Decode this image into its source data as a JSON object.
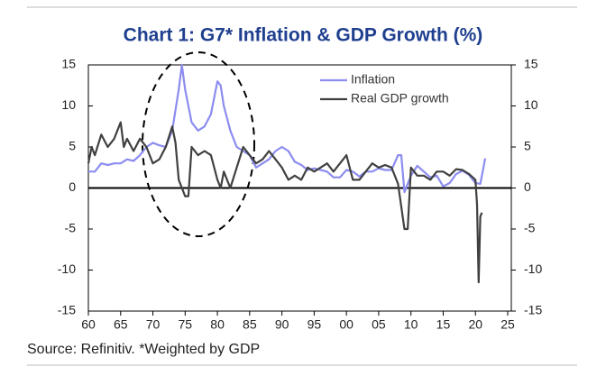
{
  "chart_data": {
    "type": "line",
    "title": "Chart 1: G7* Inflation & GDP Growth (%)",
    "source": "Source: Refinitiv. *Weighted by GDP",
    "xlim": [
      1960,
      2025
    ],
    "xticks": [
      {
        "value": 1960,
        "label": "60"
      },
      {
        "value": 1965,
        "label": "65"
      },
      {
        "value": 1970,
        "label": "70"
      },
      {
        "value": 1975,
        "label": "75"
      },
      {
        "value": 1980,
        "label": "80"
      },
      {
        "value": 1985,
        "label": "85"
      },
      {
        "value": 1990,
        "label": "90"
      },
      {
        "value": 1995,
        "label": "95"
      },
      {
        "value": 2000,
        "label": "00"
      },
      {
        "value": 2005,
        "label": "05"
      },
      {
        "value": 2010,
        "label": "10"
      },
      {
        "value": 2015,
        "label": "15"
      },
      {
        "value": 2020,
        "label": "20"
      },
      {
        "value": 2025,
        "label": "25"
      }
    ],
    "ylim": [
      -15,
      15
    ],
    "yticks": [
      15,
      10,
      5,
      0,
      -5,
      -10,
      -15
    ],
    "series": [
      {
        "name": "Inflation",
        "color": "#8c8cf0",
        "x": [
          1960,
          1961,
          1962,
          1963,
          1964,
          1965,
          1966,
          1967,
          1968,
          1969,
          1970,
          1971,
          1972,
          1973,
          1974,
          1974.5,
          1975,
          1976,
          1977,
          1978,
          1979,
          1980,
          1980.5,
          1981,
          1982,
          1983,
          1984,
          1985,
          1986,
          1987,
          1988,
          1989,
          1990,
          1991,
          1992,
          1993,
          1994,
          1995,
          1996,
          1997,
          1998,
          1999,
          2000,
          2001,
          2002,
          2003,
          2004,
          2005,
          2006,
          2007,
          2008,
          2008.5,
          2009,
          2010,
          2011,
          2012,
          2013,
          2014,
          2015,
          2016,
          2017,
          2018,
          2019,
          2020,
          2020.75,
          2021,
          2021.5
        ],
        "values": [
          2,
          2,
          3,
          2.8,
          3,
          3,
          3.5,
          3.3,
          4,
          5,
          5.5,
          5.2,
          5,
          7,
          12,
          15,
          12,
          8,
          7,
          7.5,
          9,
          13,
          12.5,
          10,
          7,
          5,
          4.5,
          4,
          2.5,
          3,
          3.5,
          4.5,
          5,
          4.5,
          3.2,
          2.8,
          2.2,
          2.4,
          2.2,
          2,
          1.3,
          1.3,
          2.2,
          2,
          1.4,
          2,
          2,
          2.4,
          2.2,
          2.2,
          4,
          4,
          -0.5,
          1.5,
          2.7,
          2,
          1.3,
          1.5,
          0.2,
          0.6,
          1.7,
          2.1,
          1.6,
          0.6,
          0.5,
          1.5,
          3.6
        ]
      },
      {
        "name": "Real GDP growth",
        "color": "#404040",
        "x": [
          1960,
          1960.5,
          1961,
          1962,
          1963,
          1964,
          1965,
          1965.5,
          1966,
          1967,
          1968,
          1969,
          1970,
          1971,
          1972,
          1973,
          1973.5,
          1974,
          1975,
          1975.5,
          1976,
          1977,
          1978,
          1979,
          1980,
          1980.5,
          1981,
          1982,
          1983,
          1984,
          1985,
          1986,
          1987,
          1988,
          1989,
          1990,
          1991,
          1992,
          1993,
          1994,
          1995,
          1996,
          1997,
          1998,
          1999,
          2000,
          2001,
          2002,
          2003,
          2004,
          2005,
          2006,
          2007,
          2008,
          2009,
          2009.5,
          2010,
          2011,
          2012,
          2013,
          2014,
          2015,
          2016,
          2017,
          2018,
          2019,
          2020,
          2020.25,
          2020.5,
          2020.75,
          2021
        ],
        "values": [
          3,
          5,
          4,
          6.5,
          5,
          6,
          8,
          5,
          6,
          4.5,
          6,
          5,
          3,
          3.5,
          5,
          7.5,
          5.5,
          1,
          -1,
          -1,
          5,
          4,
          4.5,
          4,
          1,
          0,
          2,
          0,
          2.5,
          5,
          4,
          3,
          3.5,
          4.5,
          3.5,
          2.5,
          1,
          1.5,
          1,
          2.5,
          2,
          2.5,
          3,
          2,
          3,
          4,
          1,
          1,
          2,
          3,
          2.5,
          2.8,
          2.5,
          0.5,
          -5,
          -5,
          2.5,
          1.5,
          1.5,
          1,
          2,
          2,
          1.5,
          2.3,
          2.2,
          1.7,
          1,
          -2,
          -11.5,
          -3.5,
          -3
        ]
      }
    ]
  }
}
